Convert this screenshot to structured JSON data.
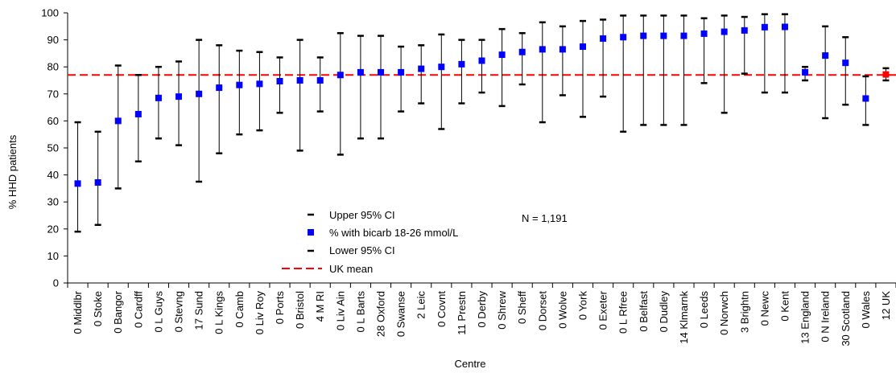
{
  "chart_data": {
    "type": "scatter",
    "xlabel": "Centre",
    "ylabel": "% HHD patients",
    "ylim": [
      0,
      100
    ],
    "yticks": [
      0,
      10,
      20,
      30,
      40,
      50,
      60,
      70,
      80,
      90,
      100
    ],
    "grid": false,
    "legend_position": "bottom-center",
    "annotation": "N = 1,191",
    "uk_mean": 77,
    "categories": [
      "0 Middlbr",
      "0 Stoke",
      "0 Bangor",
      "0 Cardff",
      "0 L Guys",
      "0 Stevng",
      "17 Sund",
      "0 L Kings",
      "0 Camb",
      "0 Liv Roy",
      "0 Ports",
      "0 Bristol",
      "4 M RI",
      "0 Liv Ain",
      "0 L Barts",
      "28 Oxford",
      "0 Swanse",
      "2 Leic",
      "0 Covnt",
      "11 Prestn",
      "0 Derby",
      "0 Shrew",
      "0 Sheff",
      "0 Dorset",
      "0 Wolve",
      "0 York",
      "0 Exeter",
      "0 L Rfree",
      "0 Belfast",
      "0 Dudley",
      "14 Klmarnk",
      "0 Leeds",
      "0 Norwch",
      "3 Brightn",
      "0 Newc",
      "0 Kent",
      "13 England",
      "0 N Ireland",
      "30 Scotland",
      "0 Wales",
      "12 UK"
    ],
    "series": [
      {
        "name": "Upper 95% CI",
        "values": [
          59.5,
          56,
          80.5,
          77,
          80,
          82,
          90,
          88,
          86,
          85.5,
          83.5,
          90,
          83.5,
          92.5,
          91.5,
          91.5,
          87.5,
          88,
          92,
          90,
          90,
          94,
          92.5,
          96.5,
          95,
          97,
          97.5,
          99,
          99,
          99,
          99,
          98,
          99,
          98.5,
          99.5,
          99.5,
          80,
          95,
          91,
          76.5,
          79.5
        ]
      },
      {
        "name": "% with bicarb 18-26 mmol/L",
        "values": [
          36.8,
          37.2,
          60,
          62.5,
          68.5,
          69,
          70,
          72.3,
          73.3,
          73.7,
          74.7,
          75,
          75,
          77,
          78,
          78,
          78,
          79.3,
          80,
          81,
          82.3,
          84.5,
          85.5,
          86.5,
          86.5,
          87.5,
          90.5,
          91,
          91.5,
          91.5,
          91.5,
          92.3,
          93,
          93.5,
          94.7,
          94.8,
          78,
          84.2,
          81.5,
          68.3,
          77.2
        ]
      },
      {
        "name": "Lower 95% CI",
        "values": [
          19,
          21.5,
          35,
          45,
          53.5,
          51,
          37.5,
          48,
          55,
          56.5,
          63,
          49,
          63.5,
          47.5,
          53.5,
          53.5,
          63.5,
          66.5,
          57,
          66.5,
          70.5,
          65.5,
          73.5,
          59.5,
          69.5,
          61.5,
          69,
          56,
          58.5,
          58.5,
          58.5,
          74,
          63,
          77.5,
          70.5,
          70.5,
          75,
          61,
          66,
          58.5,
          75
        ]
      },
      {
        "name": "UK mean",
        "values": []
      }
    ],
    "colors": {
      "marker": "#0000FF",
      "uk_marker": "#FF0000",
      "mean_line": "#FF0000",
      "ci": "#000000"
    }
  }
}
